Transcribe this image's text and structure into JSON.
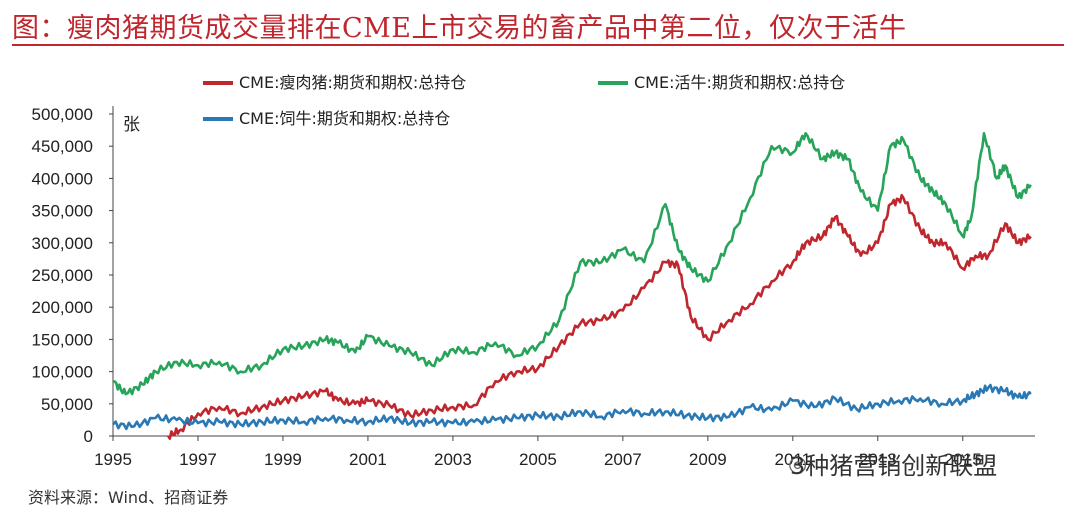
{
  "title": "图：瘦肉猪期货成交量排在CME上市交易的畜产品中第二位，仅次于活牛",
  "source": "资料来源：Wind、招商证券",
  "watermark": "3种猪营销创新联盟",
  "chart_data": {
    "type": "line",
    "ylabel": "张",
    "ylim": [
      0,
      500000
    ],
    "xlim": [
      1995,
      2016.7
    ],
    "y_ticks": [
      "500,000",
      "450,000",
      "400,000",
      "350,000",
      "300,000",
      "250,000",
      "200,000",
      "150,000",
      "100,000",
      "50,000",
      "0"
    ],
    "x_ticks": [
      "1995",
      "1997",
      "1999",
      "2001",
      "2003",
      "2005",
      "2007",
      "2009",
      "2011",
      "2013",
      "2015"
    ],
    "legend_position": "top",
    "grid": false,
    "colors": {
      "red": "#c0262d",
      "green": "#27a35a",
      "blue": "#2a78b4"
    },
    "series": [
      {
        "name": "CME:瘦肉猪:期货和期权:总持仓",
        "color": "#c0262d",
        "x": [
          1996.3,
          1996.6,
          1997.0,
          1997.5,
          1998.0,
          1998.5,
          1999.0,
          1999.5,
          2000.0,
          2000.3,
          2000.7,
          2001.0,
          2001.5,
          2002.0,
          2002.5,
          2003.0,
          2003.5,
          2004.0,
          2004.5,
          2005.0,
          2005.5,
          2006.0,
          2006.5,
          2007.0,
          2007.5,
          2008.0,
          2008.3,
          2008.6,
          2009.0,
          2009.5,
          2010.0,
          2010.5,
          2011.0,
          2011.3,
          2011.7,
          2012.0,
          2012.3,
          2012.6,
          2013.0,
          2013.3,
          2013.6,
          2014.0,
          2014.3,
          2014.6,
          2015.0,
          2015.3,
          2015.6,
          2016.0,
          2016.3,
          2016.6
        ],
        "values": [
          0,
          10000,
          35000,
          45000,
          35000,
          45000,
          55000,
          62000,
          70000,
          55000,
          50000,
          55000,
          48000,
          32000,
          40000,
          45000,
          48000,
          85000,
          100000,
          105000,
          140000,
          175000,
          180000,
          195000,
          230000,
          270000,
          265000,
          185000,
          150000,
          180000,
          205000,
          240000,
          270000,
          300000,
          310000,
          340000,
          310000,
          280000,
          300000,
          360000,
          370000,
          320000,
          300000,
          300000,
          260000,
          280000,
          280000,
          330000,
          300000,
          310000
        ]
      },
      {
        "name": "CME:活牛:期货和期权:总持仓",
        "color": "#27a35a",
        "x": [
          1995.0,
          1995.3,
          1995.7,
          1996.0,
          1996.5,
          1997.0,
          1997.5,
          1998.0,
          1998.5,
          1999.0,
          1999.5,
          2000.0,
          2000.3,
          2000.7,
          2001.0,
          2001.5,
          2002.0,
          2002.5,
          2003.0,
          2003.5,
          2004.0,
          2004.5,
          2005.0,
          2005.5,
          2006.0,
          2006.5,
          2007.0,
          2007.5,
          2008.0,
          2008.3,
          2008.6,
          2009.0,
          2009.5,
          2010.0,
          2010.5,
          2011.0,
          2011.3,
          2011.7,
          2012.0,
          2012.3,
          2012.6,
          2013.0,
          2013.3,
          2013.6,
          2014.0,
          2014.3,
          2014.6,
          2015.0,
          2015.2,
          2015.5,
          2015.8,
          2016.0,
          2016.3,
          2016.6
        ],
        "values": [
          85000,
          65000,
          80000,
          100000,
          115000,
          110000,
          115000,
          100000,
          110000,
          135000,
          140000,
          150000,
          145000,
          130000,
          155000,
          140000,
          130000,
          110000,
          135000,
          130000,
          145000,
          125000,
          140000,
          180000,
          270000,
          270000,
          290000,
          270000,
          360000,
          290000,
          260000,
          240000,
          300000,
          370000,
          450000,
          440000,
          470000,
          430000,
          440000,
          430000,
          380000,
          350000,
          450000,
          460000,
          400000,
          380000,
          360000,
          310000,
          340000,
          470000,
          400000,
          420000,
          370000,
          390000
        ]
      },
      {
        "name": "CME:饲牛:期货和期权:总持仓",
        "color": "#2a78b4",
        "x": [
          1995.0,
          1995.5,
          1996.0,
          1996.5,
          1997.0,
          1997.5,
          1998.0,
          1998.5,
          1999.0,
          1999.5,
          2000.0,
          2000.5,
          2001.0,
          2001.5,
          2002.0,
          2002.5,
          2003.0,
          2003.5,
          2004.0,
          2004.5,
          2005.0,
          2005.5,
          2006.0,
          2006.5,
          2007.0,
          2007.5,
          2008.0,
          2008.5,
          2009.0,
          2009.5,
          2010.0,
          2010.5,
          2011.0,
          2011.5,
          2012.0,
          2012.5,
          2013.0,
          2013.5,
          2014.0,
          2014.5,
          2015.0,
          2015.3,
          2015.6,
          2016.0,
          2016.3,
          2016.6
        ],
        "values": [
          18000,
          15000,
          28000,
          25000,
          20000,
          22000,
          18000,
          22000,
          25000,
          22000,
          28000,
          25000,
          22000,
          28000,
          20000,
          22000,
          20000,
          22000,
          25000,
          28000,
          32000,
          30000,
          38000,
          30000,
          40000,
          35000,
          38000,
          32000,
          28000,
          30000,
          45000,
          40000,
          55000,
          45000,
          58000,
          42000,
          50000,
          55000,
          58000,
          50000,
          55000,
          65000,
          75000,
          70000,
          60000,
          65000
        ]
      }
    ]
  }
}
